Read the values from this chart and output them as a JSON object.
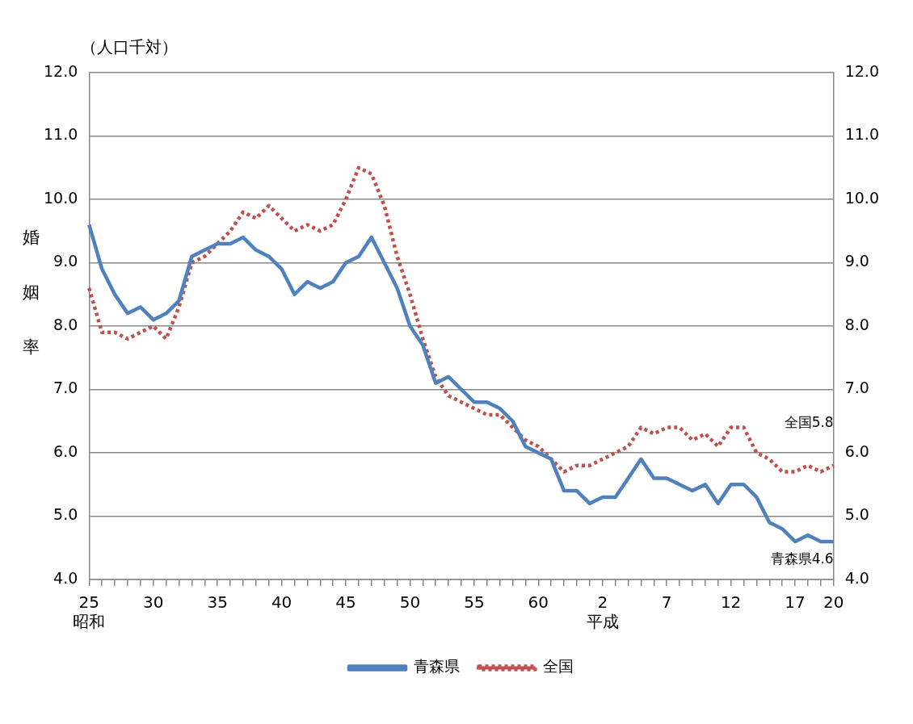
{
  "chart_data": {
    "type": "line",
    "ylabel": "婚姻率",
    "annotations": [
      "（人口千対）",
      {
        "text": "全国5.8",
        "x": "20",
        "y": 5.8
      },
      {
        "text": "青森県4.6",
        "x": "20",
        "y": 4.6
      }
    ],
    "categories": [
      "25\n昭和",
      null,
      null,
      null,
      null,
      "30",
      null,
      null,
      null,
      null,
      "35",
      null,
      null,
      null,
      null,
      "40",
      null,
      null,
      null,
      null,
      "45",
      null,
      null,
      null,
      null,
      "50",
      null,
      null,
      null,
      null,
      "55",
      null,
      null,
      null,
      null,
      "60",
      null,
      null,
      null,
      null,
      "2\n平成",
      null,
      null,
      null,
      null,
      "7",
      null,
      null,
      null,
      null,
      "12",
      null,
      null,
      null,
      null,
      "17",
      null,
      null,
      "20"
    ],
    "series": [
      {
        "name": "青森県",
        "color": "#4f81bd",
        "line_style": "solid",
        "values": [
          9.6,
          8.9,
          8.5,
          8.2,
          8.3,
          8.1,
          8.2,
          8.4,
          9.1,
          9.2,
          9.3,
          9.3,
          9.4,
          9.2,
          9.1,
          8.9,
          8.5,
          8.7,
          8.6,
          8.7,
          9.0,
          9.1,
          9.4,
          9.0,
          8.6,
          8.0,
          7.7,
          7.1,
          7.2,
          7.0,
          6.8,
          6.8,
          6.7,
          6.5,
          6.1,
          6.0,
          5.9,
          5.4,
          5.4,
          5.2,
          5.3,
          5.3,
          5.6,
          5.9,
          5.6,
          5.6,
          5.5,
          5.4,
          5.5,
          5.2,
          5.5,
          5.5,
          5.3,
          4.9,
          4.8,
          4.6,
          4.7,
          4.6,
          4.6
        ]
      },
      {
        "name": "全国",
        "color": "#c0504d",
        "line_style": "dotted",
        "values": [
          8.6,
          7.9,
          7.9,
          7.8,
          7.9,
          8.0,
          7.8,
          8.3,
          9.0,
          9.1,
          9.3,
          9.5,
          9.8,
          9.7,
          9.9,
          9.7,
          9.5,
          9.6,
          9.5,
          9.6,
          10.0,
          10.5,
          10.4,
          9.9,
          9.1,
          8.5,
          7.8,
          7.2,
          6.9,
          6.8,
          6.7,
          6.6,
          6.6,
          6.4,
          6.2,
          6.1,
          5.9,
          5.7,
          5.8,
          5.8,
          5.9,
          6.0,
          6.1,
          6.4,
          6.3,
          6.4,
          6.4,
          6.2,
          6.3,
          6.1,
          6.4,
          6.4,
          6.0,
          5.9,
          5.7,
          5.7,
          5.8,
          5.7,
          5.8
        ]
      }
    ],
    "ylim": [
      4,
      12
    ],
    "yticks": [
      {
        "value": 4,
        "label": "4.0"
      },
      {
        "value": 5,
        "label": "5.0"
      },
      {
        "value": 6,
        "label": "6.0"
      },
      {
        "value": 7,
        "label": "7.0"
      },
      {
        "value": 8,
        "label": "8.0"
      },
      {
        "value": 9,
        "label": "9.0"
      },
      {
        "value": 10,
        "label": "10.0"
      },
      {
        "value": 11,
        "label": "11.0"
      },
      {
        "value": 12,
        "label": "12.0"
      }
    ],
    "y2lim": [
      4,
      12
    ],
    "y2ticks": [
      {
        "value": 4,
        "label": "4.0"
      },
      {
        "value": 5,
        "label": "5.0"
      },
      {
        "value": 6,
        "label": "6.0"
      },
      {
        "value": 7,
        "label": "7.0"
      },
      {
        "value": 8,
        "label": "8.0"
      },
      {
        "value": 9,
        "label": "9.0"
      },
      {
        "value": 10,
        "label": "10.0"
      },
      {
        "value": 11,
        "label": "11.0"
      },
      {
        "value": 12,
        "label": "12.0"
      }
    ],
    "grid": "y",
    "legend": "bottom",
    "marker": "none"
  }
}
